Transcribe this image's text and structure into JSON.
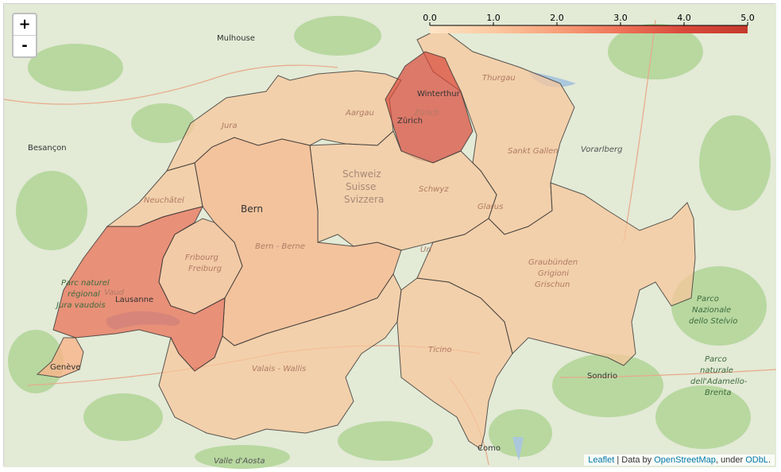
{
  "zoom": {
    "in_label": "+",
    "out_label": "-"
  },
  "legend": {
    "ticks": [
      "0.0",
      "1.0",
      "2.0",
      "3.0",
      "4.0",
      "5.0"
    ],
    "colors": [
      "#fde5c7",
      "#fcc9a0",
      "#f7a07a",
      "#ee7358",
      "#d9493b",
      "#c43a2c"
    ]
  },
  "attribution": {
    "leaflet": "Leaflet",
    "separator": " | Data by ",
    "osm": "OpenStreetMap",
    "under": ", under ",
    "odbl": "ODbL",
    "end": "."
  },
  "places": {
    "mulhouse": "Mulhouse",
    "besancon": "Besançon",
    "bern": "Bern",
    "lausanne": "Lausanne",
    "geneve": "Genève",
    "winterthur": "Winterthur",
    "zurich": "Zürich",
    "sondrio": "Sondrio",
    "como": "Como",
    "thurgau": "Thurgau",
    "aargau": "Aargau",
    "jura": "Jura",
    "neuchatel": "Neuchâtel",
    "fribourg_1": "Fribourg",
    "fribourg_2": "Freiburg",
    "bern_region": "Bern - Berne",
    "schweiz_1": "Schweiz",
    "schweiz_2": "Suisse",
    "schweiz_3": "Svizzera",
    "schwyz": "Schwyz",
    "glarus": "Glarus",
    "uri": "Uri",
    "st_gallen": "Sankt Gallen",
    "vorarlberg": "Vorarlberg",
    "graubunden_1": "Graubünden",
    "graubunden_2": "Grigioni",
    "graubunden_3": "Grischun",
    "ticino": "Ticino",
    "valais": "Valais - Wallis",
    "vaud": "Vaud",
    "zurich_region": "Zürich",
    "parco_vaudois_1": "Parc naturel",
    "parco_vaudois_2": "régional",
    "parco_vaudois_3": "Jura vaudois",
    "stelvio_1": "Parco",
    "stelvio_2": "Nazionale",
    "stelvio_3": "dello Stelvio",
    "adamello_1": "Parco",
    "adamello_2": "naturale",
    "adamello_3": "dell'Adamello-",
    "adamello_4": "Brenta",
    "valle_aosta": "Valle d'Aosta"
  },
  "choropleth": [
    {
      "name": "Zürich",
      "value": 3.6
    },
    {
      "name": "Vaud",
      "value": 3.1
    },
    {
      "name": "Fribourg",
      "value": 1.2
    },
    {
      "name": "Bern",
      "value": 1.4
    },
    {
      "name": "Graubünden",
      "value": 0.8
    },
    {
      "name": "Valais",
      "value": 0.8
    },
    {
      "name": "Ticino",
      "value": 0.8
    }
  ]
}
